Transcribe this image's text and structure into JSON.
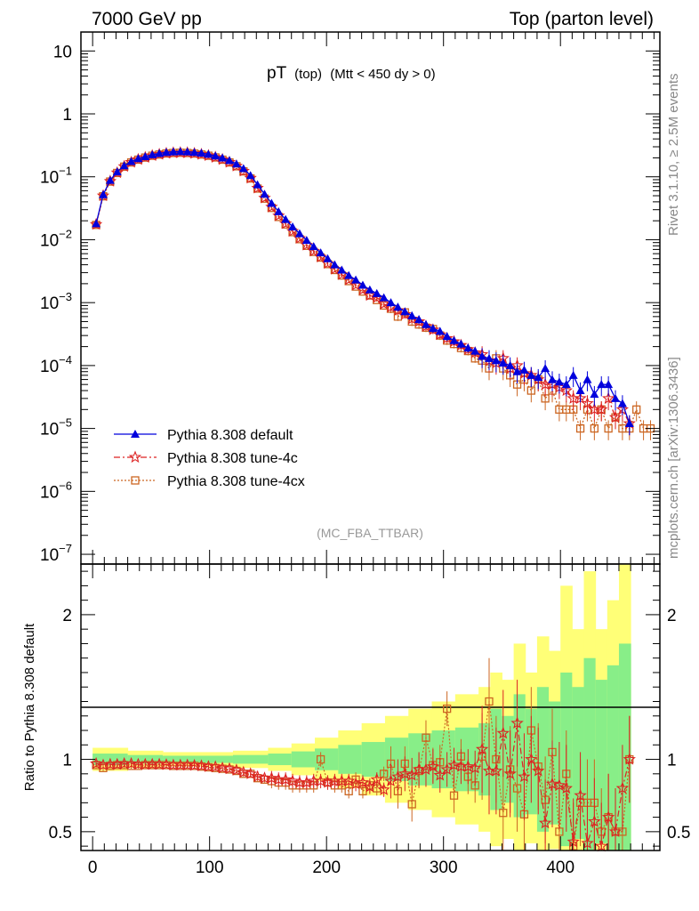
{
  "header": {
    "left": "7000 GeV pp",
    "right": "Top (parton level)"
  },
  "side_labels": {
    "rivet": "Rivet 3.1.10, ≥ 2.5M events",
    "mcplots": "mcplots.cern.ch [arXiv:1306.3436]"
  },
  "chart_data": [
    {
      "type": "line",
      "panel": "main",
      "title_main": "pT",
      "title_sub": "(top)",
      "title_cut": "(Mtt < 450 dy > 0)",
      "watermark": "(MC_FBA_TTBAR)",
      "xlabel": "",
      "ylabel": "",
      "log_y": true,
      "xlim": [
        -10,
        485
      ],
      "ylim": [
        7e-08,
        20
      ],
      "y_tick_labels": [
        {
          "v": 10,
          "m": "10",
          "e": ""
        },
        {
          "v": 1,
          "m": "1",
          "e": ""
        },
        {
          "v": 0.1,
          "m": "10",
          "e": "−1"
        },
        {
          "v": 0.01,
          "m": "10",
          "e": "−2"
        },
        {
          "v": 0.001,
          "m": "10",
          "e": "−3"
        },
        {
          "v": 0.0001,
          "m": "10",
          "e": "−4"
        },
        {
          "v": 1e-05,
          "m": "10",
          "e": "−5"
        },
        {
          "v": 1e-06,
          "m": "10",
          "e": "−6"
        },
        {
          "v": 1e-07,
          "m": "10",
          "e": "−7"
        }
      ],
      "legend_position": "center-left",
      "series": [
        {
          "name": "Pythia 8.308 default",
          "color": "#0000dd",
          "marker": "triangle",
          "x": [
            3,
            9,
            15,
            21,
            27,
            33,
            39,
            45,
            51,
            57,
            63,
            69,
            75,
            81,
            87,
            93,
            99,
            105,
            111,
            117,
            123,
            129,
            135,
            141,
            147,
            153,
            159,
            165,
            171,
            177,
            183,
            189,
            195,
            201,
            207,
            213,
            219,
            225,
            231,
            237,
            243,
            249,
            255,
            261,
            267,
            273,
            279,
            285,
            291,
            297,
            303,
            309,
            315,
            321,
            327,
            333,
            339,
            345,
            351,
            357,
            363,
            369,
            375,
            381,
            387,
            393,
            399,
            405,
            411,
            417,
            423,
            429,
            435,
            441,
            447,
            453,
            459
          ],
          "y": [
            0.018,
            0.052,
            0.088,
            0.12,
            0.15,
            0.175,
            0.195,
            0.21,
            0.225,
            0.235,
            0.245,
            0.25,
            0.252,
            0.25,
            0.245,
            0.238,
            0.228,
            0.215,
            0.2,
            0.182,
            0.16,
            0.135,
            0.105,
            0.075,
            0.053,
            0.038,
            0.028,
            0.021,
            0.016,
            0.0125,
            0.0098,
            0.0078,
            0.0062,
            0.005,
            0.004,
            0.0033,
            0.0027,
            0.0023,
            0.0019,
            0.0016,
            0.0014,
            0.0012,
            0.001,
            0.00085,
            0.00072,
            0.00062,
            0.00054,
            0.00045,
            0.00039,
            0.00035,
            0.00029,
            0.00025,
            0.00022,
            0.00019,
            0.00017,
            0.00014,
            0.00013,
            0.00012,
            0.00011,
            0.0001,
            8e-05,
            8.5e-05,
            7e-05,
            6.5e-05,
            9e-05,
            6e-05,
            5.5e-05,
            5e-05,
            7e-05,
            4e-05,
            6e-05,
            3.5e-05,
            5e-05,
            5e-05,
            3e-05,
            2.5e-05,
            1.2e-05
          ]
        },
        {
          "name": "Pythia 8.308 tune-4c",
          "color": "#dd2222",
          "marker": "star",
          "x": [
            3,
            9,
            15,
            21,
            27,
            33,
            39,
            45,
            51,
            57,
            63,
            69,
            75,
            81,
            87,
            93,
            99,
            105,
            111,
            117,
            123,
            129,
            135,
            141,
            147,
            153,
            159,
            165,
            171,
            177,
            183,
            189,
            195,
            201,
            207,
            213,
            219,
            225,
            231,
            237,
            243,
            249,
            255,
            261,
            267,
            273,
            279,
            285,
            291,
            297,
            303,
            309,
            315,
            321,
            327,
            333,
            339,
            345,
            351,
            357,
            363,
            369,
            375,
            381,
            387,
            393,
            399,
            405,
            411,
            417,
            423,
            429,
            435,
            441,
            447,
            453,
            459
          ],
          "y": [
            0.0175,
            0.05,
            0.085,
            0.116,
            0.146,
            0.17,
            0.188,
            0.203,
            0.217,
            0.227,
            0.236,
            0.24,
            0.242,
            0.24,
            0.235,
            0.227,
            0.217,
            0.204,
            0.188,
            0.17,
            0.148,
            0.123,
            0.095,
            0.066,
            0.046,
            0.033,
            0.024,
            0.018,
            0.0136,
            0.0105,
            0.0082,
            0.0066,
            0.0053,
            0.0042,
            0.0034,
            0.0028,
            0.0023,
            0.0019,
            0.0016,
            0.0013,
            0.0012,
            0.00095,
            0.00085,
            0.00075,
            0.00065,
            0.00055,
            0.0005,
            0.00042,
            0.00037,
            0.00031,
            0.00027,
            0.00024,
            0.00021,
            0.00018,
            0.00016,
            0.00015,
            0.00012,
            0.00011,
            0.00013,
            9e-05,
            0.0001,
            7.5e-05,
            7e-05,
            6e-05,
            5e-05,
            5e-05,
            4.5e-05,
            4e-05,
            3e-05,
            3e-05,
            2.5e-05,
            2e-05,
            2e-05,
            3e-05,
            1.5e-05,
            2e-05,
            1.2e-05
          ]
        },
        {
          "name": "Pythia 8.308 tune-4cx",
          "color": "#cc6622",
          "marker": "square",
          "x": [
            3,
            9,
            15,
            21,
            27,
            33,
            39,
            45,
            51,
            57,
            63,
            69,
            75,
            81,
            87,
            93,
            99,
            105,
            111,
            117,
            123,
            129,
            135,
            141,
            147,
            153,
            159,
            165,
            171,
            177,
            183,
            189,
            195,
            201,
            207,
            213,
            219,
            225,
            231,
            237,
            243,
            249,
            255,
            261,
            267,
            273,
            279,
            285,
            291,
            297,
            303,
            309,
            315,
            321,
            327,
            333,
            339,
            345,
            351,
            357,
            363,
            369,
            375,
            381,
            387,
            393,
            399,
            405,
            411,
            417,
            423,
            429,
            435,
            441,
            447,
            453,
            459,
            465,
            471,
            477
          ],
          "y": [
            0.0172,
            0.049,
            0.084,
            0.115,
            0.145,
            0.169,
            0.187,
            0.202,
            0.216,
            0.226,
            0.235,
            0.239,
            0.241,
            0.239,
            0.234,
            0.226,
            0.216,
            0.203,
            0.187,
            0.169,
            0.147,
            0.122,
            0.094,
            0.065,
            0.045,
            0.032,
            0.023,
            0.0175,
            0.0132,
            0.0102,
            0.008,
            0.0064,
            0.0052,
            0.0041,
            0.0033,
            0.0027,
            0.0022,
            0.0018,
            0.0015,
            0.0013,
            0.0011,
            0.0009,
            0.0008,
            0.0006,
            0.0007,
            0.0005,
            0.00045,
            0.0004,
            0.00038,
            0.0003,
            0.00025,
            0.00022,
            0.00019,
            0.00017,
            0.00013,
            0.00012,
            9e-05,
            0.00013,
            9e-05,
            7e-05,
            5e-05,
            6e-05,
            4e-05,
            6e-05,
            3e-05,
            4e-05,
            2e-05,
            2e-05,
            2e-05,
            1e-05,
            2e-05,
            1e-05,
            2e-05,
            1e-05,
            1.5e-05,
            1e-05,
            1e-05,
            2e-05,
            1e-05,
            1e-05
          ]
        }
      ]
    },
    {
      "type": "line",
      "panel": "ratio",
      "ylabel": "Ratio to Pythia 8.308 default",
      "xlim": [
        -10,
        485
      ],
      "ylim": [
        0.37,
        2.35
      ],
      "x_ticks": [
        0,
        100,
        200,
        300,
        400
      ],
      "y_ticks": [
        0.5,
        1,
        2
      ],
      "band_edges": [
        0,
        30,
        60,
        90,
        120,
        150,
        170,
        190,
        210,
        230,
        250,
        270,
        290,
        310,
        330,
        340,
        350,
        360,
        370,
        380,
        390,
        400,
        410,
        420,
        430,
        440,
        450,
        460
      ],
      "band_yellow_upper": [
        1.08,
        1.06,
        1.05,
        1.05,
        1.06,
        1.08,
        1.11,
        1.15,
        1.2,
        1.25,
        1.3,
        1.35,
        1.4,
        1.45,
        1.5,
        1.6,
        1.55,
        1.8,
        1.6,
        1.85,
        1.75,
        2.2,
        1.9,
        2.3,
        1.9,
        2.1,
        2.35
      ],
      "band_yellow_lower": [
        0.92,
        0.94,
        0.95,
        0.95,
        0.94,
        0.92,
        0.89,
        0.85,
        0.8,
        0.75,
        0.7,
        0.65,
        0.6,
        0.55,
        0.5,
        0.4,
        0.45,
        0.37,
        0.42,
        0.37,
        0.38,
        0.37,
        0.37,
        0.37,
        0.37,
        0.37,
        0.37
      ],
      "band_green_upper": [
        1.04,
        1.03,
        1.025,
        1.025,
        1.03,
        1.04,
        1.055,
        1.075,
        1.1,
        1.12,
        1.15,
        1.18,
        1.2,
        1.22,
        1.25,
        1.35,
        1.3,
        1.45,
        1.35,
        1.5,
        1.4,
        1.6,
        1.5,
        1.7,
        1.55,
        1.65,
        1.8
      ],
      "band_green_lower": [
        0.96,
        0.97,
        0.975,
        0.975,
        0.97,
        0.96,
        0.945,
        0.925,
        0.9,
        0.88,
        0.85,
        0.82,
        0.8,
        0.78,
        0.75,
        0.65,
        0.7,
        0.6,
        0.62,
        0.5,
        0.55,
        0.4,
        0.45,
        0.37,
        0.42,
        0.37,
        0.37
      ],
      "series": [
        {
          "name": "Pythia 8.308 tune-4c",
          "color": "#dd2222",
          "marker": "star",
          "x": [
            3,
            9,
            15,
            21,
            27,
            33,
            39,
            45,
            51,
            57,
            63,
            69,
            75,
            81,
            87,
            93,
            99,
            105,
            111,
            117,
            123,
            129,
            135,
            141,
            147,
            153,
            159,
            165,
            171,
            177,
            183,
            189,
            195,
            201,
            207,
            213,
            219,
            225,
            231,
            237,
            243,
            249,
            255,
            261,
            267,
            273,
            279,
            285,
            291,
            297,
            303,
            309,
            315,
            321,
            327,
            333,
            339,
            345,
            351,
            357,
            363,
            369,
            375,
            381,
            387,
            393,
            399,
            405,
            411,
            417,
            423,
            429,
            435,
            441,
            447,
            453,
            459
          ],
          "y": [
            0.97,
            0.96,
            0.965,
            0.965,
            0.97,
            0.97,
            0.965,
            0.965,
            0.965,
            0.965,
            0.963,
            0.96,
            0.96,
            0.96,
            0.958,
            0.955,
            0.95,
            0.948,
            0.94,
            0.935,
            0.925,
            0.91,
            0.9,
            0.88,
            0.87,
            0.87,
            0.86,
            0.86,
            0.85,
            0.84,
            0.84,
            0.85,
            0.85,
            0.84,
            0.85,
            0.85,
            0.85,
            0.83,
            0.84,
            0.81,
            0.86,
            0.79,
            0.85,
            0.88,
            0.9,
            0.89,
            0.93,
            0.93,
            0.95,
            0.89,
            0.93,
            0.96,
            0.95,
            0.95,
            0.94,
            1.07,
            0.92,
            0.92,
            1.18,
            0.9,
            1.25,
            0.88,
            1.0,
            0.92,
            0.56,
            0.83,
            0.82,
            0.8,
            0.43,
            0.75,
            0.42,
            0.57,
            0.4,
            0.6,
            0.5,
            0.8,
            1.0
          ]
        },
        {
          "name": "Pythia 8.308 tune-4cx",
          "color": "#cc6622",
          "marker": "square",
          "x": [
            3,
            9,
            15,
            21,
            27,
            33,
            39,
            45,
            51,
            57,
            63,
            69,
            75,
            81,
            87,
            93,
            99,
            105,
            111,
            117,
            123,
            129,
            135,
            141,
            147,
            153,
            159,
            165,
            171,
            177,
            183,
            189,
            195,
            201,
            207,
            213,
            219,
            225,
            231,
            237,
            243,
            249,
            255,
            261,
            267,
            273,
            279,
            285,
            291,
            297,
            303,
            309,
            315,
            321,
            327,
            333,
            339,
            345,
            351,
            357,
            363,
            369,
            375,
            381,
            387,
            393,
            399,
            405,
            411,
            417,
            423,
            429,
            435,
            441,
            447,
            453,
            459
          ],
          "y": [
            0.96,
            0.94,
            0.955,
            0.96,
            0.96,
            0.955,
            0.955,
            0.96,
            0.96,
            0.96,
            0.96,
            0.955,
            0.955,
            0.955,
            0.955,
            0.95,
            0.945,
            0.94,
            0.935,
            0.93,
            0.92,
            0.9,
            0.9,
            0.87,
            0.86,
            0.85,
            0.84,
            0.84,
            0.82,
            0.82,
            0.82,
            0.82,
            1.0,
            0.84,
            0.82,
            0.82,
            0.78,
            0.86,
            0.78,
            0.82,
            0.8,
            0.9,
            0.97,
            0.78,
            0.97,
            0.69,
            0.92,
            1.15,
            0.96,
            0.98,
            1.35,
            0.75,
            1.02,
            0.88,
            0.82,
            1.02,
            1.4,
            1.0,
            0.63,
            0.93,
            0.8,
            0.62,
            1.2,
            0.95,
            0.72,
            1.05,
            0.5,
            0.9,
            0.4,
            0.7,
            0.7,
            0.7,
            0.5,
            0.6,
            0.5,
            0.5,
            1.0
          ]
        }
      ]
    }
  ]
}
